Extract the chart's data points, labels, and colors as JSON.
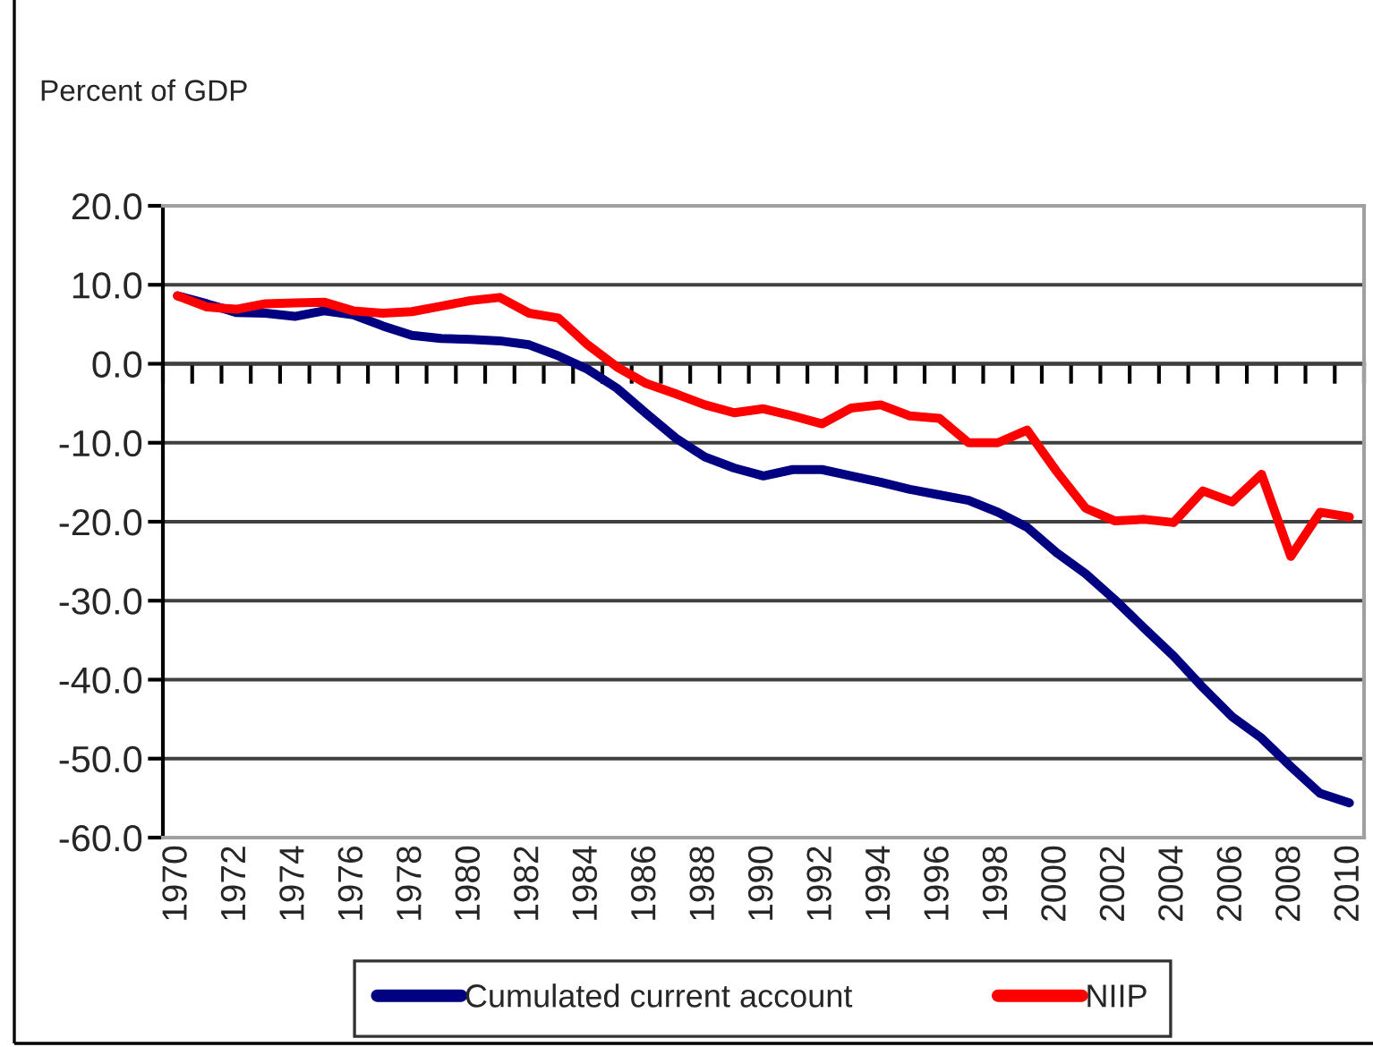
{
  "chart_data": {
    "type": "line",
    "ylabel": "Percent of GDP",
    "categories": [
      "1970",
      null,
      "1972",
      null,
      "1974",
      null,
      "1976",
      null,
      "1978",
      null,
      "1980",
      null,
      "1982",
      null,
      "1984",
      null,
      "1986",
      null,
      "1988",
      null,
      "1990",
      null,
      "1992",
      null,
      "1994",
      null,
      "1996",
      null,
      "1998",
      null,
      "2000",
      null,
      "2002",
      null,
      "2004",
      null,
      "2006",
      null,
      "2008",
      null,
      "2010"
    ],
    "series": [
      {
        "name": "Cumulated current account",
        "color": "#000080",
        "values": [
          8.6,
          7.6,
          6.5,
          6.4,
          6.0,
          6.7,
          6.2,
          4.8,
          3.6,
          3.2,
          3.1,
          2.9,
          2.4,
          1.0,
          -0.7,
          -3.1,
          -6.3,
          -9.4,
          -11.8,
          -13.2,
          -14.2,
          -13.4,
          -13.4,
          -14.2,
          -15.0,
          -15.9,
          -16.6,
          -17.3,
          -18.8,
          -20.7,
          -23.9,
          -26.6,
          -29.9,
          -33.5,
          -37.0,
          -41.0,
          -44.7,
          -47.4,
          -51.0,
          -54.4,
          -55.6
        ]
      },
      {
        "name": "NIIP",
        "color": "#ff0000",
        "values": [
          8.6,
          7.2,
          6.9,
          7.6,
          7.7,
          7.8,
          6.7,
          6.4,
          6.6,
          7.3,
          8.0,
          8.4,
          6.4,
          5.8,
          2.4,
          -0.4,
          -2.5,
          -3.8,
          -5.2,
          -6.2,
          -5.7,
          -6.6,
          -7.6,
          -5.6,
          -5.2,
          -6.6,
          -6.9,
          -10.0,
          -10.0,
          -8.4,
          -13.6,
          -18.3,
          -19.9,
          -19.7,
          -20.1,
          -16.1,
          -17.5,
          -14.0,
          -24.4,
          -18.8,
          -19.4
        ]
      }
    ],
    "ylim": [
      -60,
      20
    ],
    "yticks": [
      {
        "value": 20,
        "label": "20.0"
      },
      {
        "value": 10,
        "label": "10.0"
      },
      {
        "value": 0,
        "label": "0.0"
      },
      {
        "value": -10,
        "label": "-10.0"
      },
      {
        "value": -20,
        "label": "-20.0"
      },
      {
        "value": -30,
        "label": "-30.0"
      },
      {
        "value": -40,
        "label": "-40.0"
      },
      {
        "value": -50,
        "label": "-50.0"
      },
      {
        "value": -60,
        "label": "-60.0"
      }
    ],
    "grid": "y",
    "legend": "bottom"
  }
}
